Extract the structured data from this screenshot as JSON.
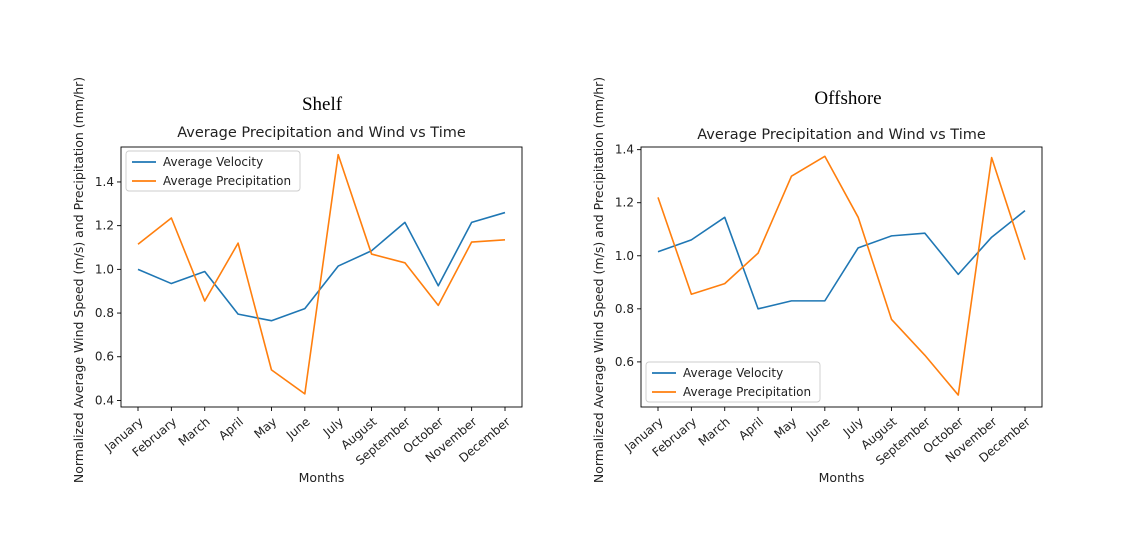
{
  "figure": {
    "panel_titles": [
      "Shelf",
      "Offshore"
    ]
  },
  "chart_data": [
    {
      "type": "line",
      "panel_title": "Shelf",
      "title": "Average Precipitation and Wind vs Time",
      "xlabel": "Months",
      "ylabel": "Normalized Average Wind Speed (m/s) and Precipitation (mm/hr)",
      "categories": [
        "January",
        "February",
        "March",
        "April",
        "May",
        "June",
        "July",
        "August",
        "September",
        "October",
        "November",
        "December"
      ],
      "ylim": [
        0.37,
        1.56
      ],
      "yticks": [
        "0.4",
        "0.6",
        "0.8",
        "1.0",
        "1.2",
        "1.4"
      ],
      "ytick_values": [
        0.4,
        0.6,
        0.8,
        1.0,
        1.2,
        1.4
      ],
      "legend_position": "upper-left",
      "grid": false,
      "series": [
        {
          "name": "Average Velocity",
          "color": "#1f77b4",
          "values": [
            1.0,
            0.935,
            0.99,
            0.795,
            0.765,
            0.82,
            1.015,
            1.085,
            1.215,
            0.925,
            1.215,
            1.26
          ]
        },
        {
          "name": "Average Precipitation",
          "color": "#ff7f0e",
          "values": [
            1.115,
            1.235,
            0.855,
            1.12,
            0.54,
            0.43,
            1.525,
            1.07,
            1.03,
            0.835,
            1.125,
            1.135
          ]
        }
      ]
    },
    {
      "type": "line",
      "panel_title": "Offshore",
      "title": "Average Precipitation and Wind vs Time",
      "xlabel": "Months",
      "ylabel": "Normalized Average Wind Speed (m/s) and Precipitation (mm/hr)",
      "categories": [
        "January",
        "February",
        "March",
        "April",
        "May",
        "June",
        "July",
        "August",
        "September",
        "October",
        "November",
        "December"
      ],
      "ylim": [
        0.43,
        1.41
      ],
      "yticks": [
        "0.6",
        "0.8",
        "1.0",
        "1.2",
        "1.4"
      ],
      "ytick_values": [
        0.6,
        0.8,
        1.0,
        1.2,
        1.4
      ],
      "legend_position": "lower-left",
      "grid": false,
      "series": [
        {
          "name": "Average Velocity",
          "color": "#1f77b4",
          "values": [
            1.015,
            1.06,
            1.145,
            0.8,
            0.83,
            0.83,
            1.03,
            1.075,
            1.085,
            0.93,
            1.07,
            1.17
          ]
        },
        {
          "name": "Average Precipitation",
          "color": "#ff7f0e",
          "values": [
            1.22,
            0.855,
            0.895,
            1.01,
            1.3,
            1.375,
            1.145,
            0.76,
            0.625,
            0.475,
            1.37,
            0.985
          ]
        }
      ]
    }
  ]
}
